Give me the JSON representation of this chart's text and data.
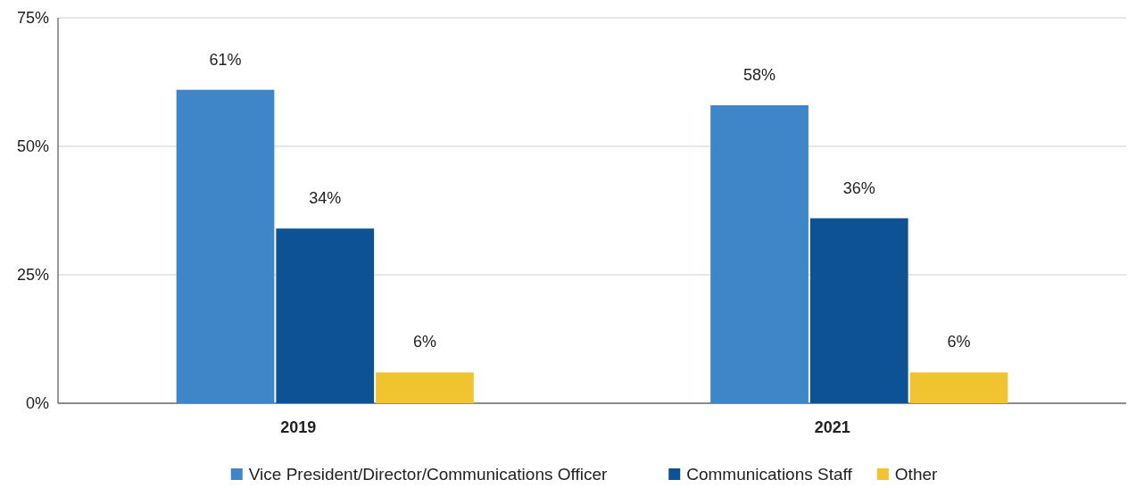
{
  "chart_data": {
    "type": "bar",
    "categories": [
      "2019",
      "2021"
    ],
    "series": [
      {
        "name": "Vice President/Director/Communications Officer",
        "color": "#3f86c8",
        "values": [
          61,
          58
        ],
        "value_labels": [
          "61%",
          "58%"
        ]
      },
      {
        "name": "Communications Staff",
        "color": "#0d5294",
        "values": [
          34,
          36
        ],
        "value_labels": [
          "34%",
          "36%"
        ]
      },
      {
        "name": "Other",
        "color": "#f0c430",
        "values": [
          6,
          6
        ],
        "value_labels": [
          "6%",
          "6%"
        ]
      }
    ],
    "ylim": [
      0,
      75
    ],
    "yticks": [
      {
        "value": 0,
        "label": "0%"
      },
      {
        "value": 25,
        "label": "25%"
      },
      {
        "value": 50,
        "label": "50%"
      },
      {
        "value": 75,
        "label": "75%"
      }
    ],
    "grid": "y",
    "legend": "bottom"
  }
}
